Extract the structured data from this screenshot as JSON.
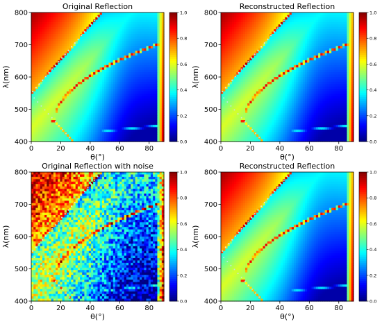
{
  "chart_data": [
    {
      "type": "heatmap",
      "title": "Original Reflection",
      "xlabel": "θ(°)",
      "ylabel": "λ(nm)",
      "xlim": [
        0,
        90
      ],
      "ylim": [
        400,
        800
      ],
      "xticks": [
        "0",
        "20",
        "40",
        "60",
        "80"
      ],
      "yticks": [
        "400",
        "500",
        "600",
        "700",
        "800"
      ],
      "colorbar": {
        "range": [
          0.0,
          1.0
        ],
        "ticks": [
          "0.0",
          "0.2",
          "0.4",
          "0.6",
          "0.8",
          "1.0"
        ],
        "colormap": "jet"
      },
      "noise": false
    },
    {
      "type": "heatmap",
      "title": "Reconstructed Reflection",
      "xlabel": "θ(°)",
      "ylabel": "λ(nm)",
      "xlim": [
        0,
        90
      ],
      "ylim": [
        400,
        800
      ],
      "xticks": [
        "0",
        "20",
        "40",
        "60",
        "80"
      ],
      "yticks": [
        "400",
        "500",
        "600",
        "700",
        "800"
      ],
      "colorbar": {
        "range": [
          0.0,
          1.0
        ],
        "ticks": [
          "0.0",
          "0.2",
          "0.4",
          "0.6",
          "0.8",
          "1.0"
        ],
        "colormap": "jet"
      },
      "noise": false
    },
    {
      "type": "heatmap",
      "title": "Original Reflection with noise",
      "xlabel": "θ(°)",
      "ylabel": "λ(nm)",
      "xlim": [
        0,
        90
      ],
      "ylim": [
        400,
        800
      ],
      "xticks": [
        "0",
        "20",
        "40",
        "60",
        "80"
      ],
      "yticks": [
        "400",
        "500",
        "600",
        "700",
        "800"
      ],
      "colorbar": {
        "range": [
          0.0,
          1.0
        ],
        "ticks": [
          "0.0",
          "0.2",
          "0.4",
          "0.6",
          "0.8",
          "1.0"
        ],
        "colormap": "jet"
      },
      "noise": true
    },
    {
      "type": "heatmap",
      "title": "Reconstructed Reflection",
      "xlabel": "θ(°)",
      "ylabel": "λ(nm)",
      "xlim": [
        0,
        90
      ],
      "ylim": [
        400,
        800
      ],
      "xticks": [
        "0",
        "20",
        "40",
        "60",
        "80"
      ],
      "yticks": [
        "400",
        "500",
        "600",
        "700",
        "800"
      ],
      "colorbar": {
        "range": [
          0.0,
          1.0
        ],
        "ticks": [
          "0.0",
          "0.2",
          "0.4",
          "0.6",
          "0.8",
          "1.0"
        ],
        "colormap": "jet"
      },
      "noise": false
    }
  ]
}
